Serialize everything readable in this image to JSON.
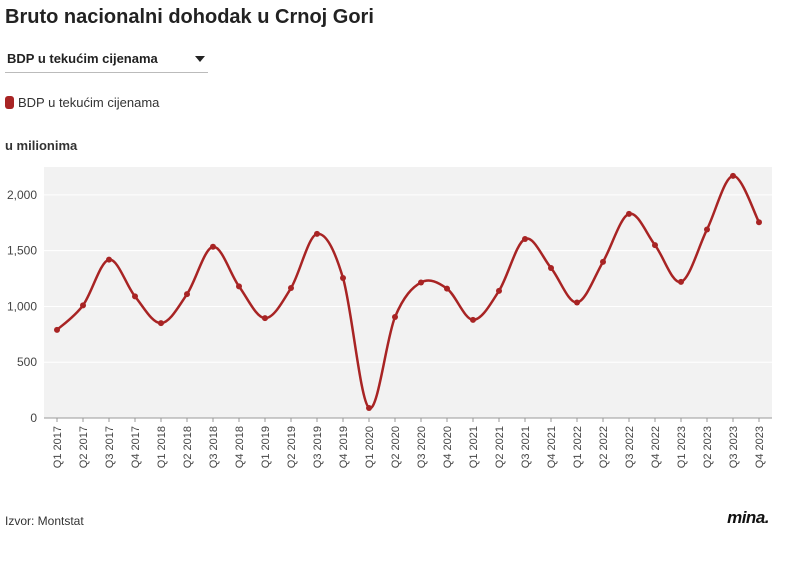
{
  "title": "Bruto nacionalni dohodak u Crnoj Gori",
  "selector": {
    "value": "BDP u tekućim cijenama"
  },
  "legend": {
    "label": "BDP u tekućim cijenama"
  },
  "subtitle": "u milionima",
  "source": "Izvor: Montstat",
  "logo": "mina.",
  "colors": {
    "line": "#a82424",
    "plot_bg": "#f2f2f2",
    "grid": "#ffffff"
  },
  "icons": {
    "dropdown": "caret-down-icon"
  },
  "chart_data": {
    "type": "line",
    "title": "Bruto nacionalni dohodak u Crnoj Gori",
    "ylabel": "u milionima",
    "xlabel": "",
    "ylim": [
      0,
      2250
    ],
    "yticks": [
      0,
      500,
      1000,
      1500,
      2000
    ],
    "ytick_labels": [
      "0",
      "500",
      "1,000",
      "1,500",
      "2,000"
    ],
    "grid": true,
    "legend_position": "top-left",
    "categories": [
      "Q1 2017",
      "Q2 2017",
      "Q3 2017",
      "Q4 2017",
      "Q1 2018",
      "Q2 2018",
      "Q3 2018",
      "Q4 2018",
      "Q1 2019",
      "Q2 2019",
      "Q3 2019",
      "Q4 2019",
      "Q1 2020",
      "Q2 2020",
      "Q3 2020",
      "Q4 2020",
      "Q1 2021",
      "Q2 2021",
      "Q3 2021",
      "Q4 2021",
      "Q1 2022",
      "Q2 2022",
      "Q3 2022",
      "Q4 2022",
      "Q1 2023",
      "Q2 2023",
      "Q3 2023",
      "Q4 2023"
    ],
    "series": [
      {
        "name": "BDP u tekućim cijenama",
        "values": [
          790,
          1010,
          1420,
          1090,
          850,
          1110,
          1535,
          1180,
          895,
          1165,
          1650,
          1255,
          90,
          905,
          1215,
          1160,
          880,
          1140,
          1605,
          1345,
          1035,
          1400,
          1830,
          1550,
          1220,
          1690,
          2170,
          1755
        ]
      }
    ]
  }
}
